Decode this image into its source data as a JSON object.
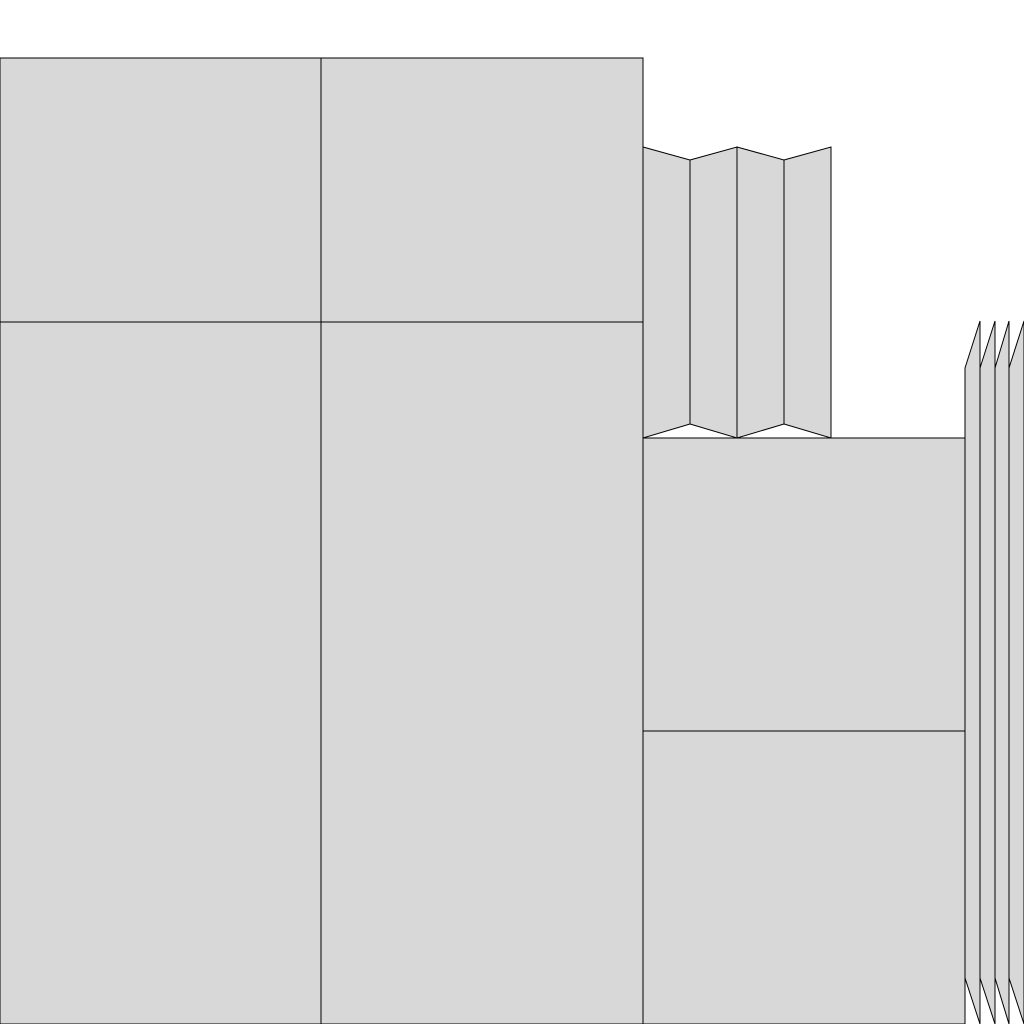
{
  "colors": {
    "panel_fill": "#d8d8d8",
    "stroke": "#000000",
    "background": "#ffffff"
  },
  "diagram": {
    "description_free": true,
    "groups": [
      {
        "name": "large-grid-panels",
        "count": 4
      },
      {
        "name": "folded-strip-top",
        "count": 4
      },
      {
        "name": "right-stacked-panels",
        "count": 2
      },
      {
        "name": "folded-strip-edge",
        "count": 4
      }
    ]
  }
}
